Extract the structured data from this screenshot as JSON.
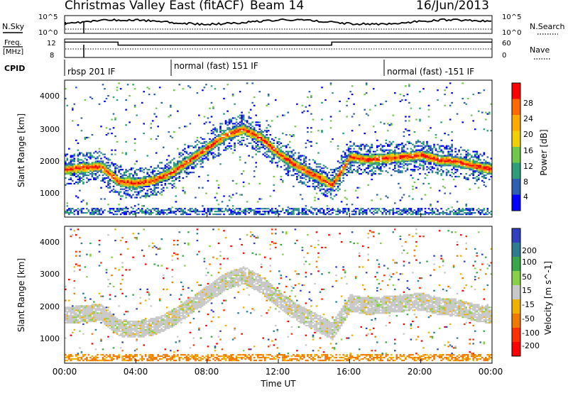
{
  "header": {
    "title": "Christmas Valley East (fitACF)",
    "beam": "Beam 14",
    "date": "16/Jun/2013"
  },
  "nsky": {
    "label": "N.Sky",
    "ticks": [
      "10^5",
      "10^0"
    ],
    "right_label": "N.Search",
    "right_ticks": [
      "10^5",
      "10^0"
    ]
  },
  "freq": {
    "label_line1": "Freq.",
    "label_line2": "[MHz]",
    "ticks": [
      "12",
      "8"
    ],
    "right_label": "Nave",
    "right_ticks": [
      "60",
      "0"
    ]
  },
  "cpid": {
    "label": "CPID",
    "segments": [
      {
        "label": "rbsp 201 IF",
        "start": 0
      },
      {
        "label": "normal (fast) 151 IF",
        "start": 6
      },
      {
        "label": "normal (fast) -151 IF",
        "start": 18
      }
    ]
  },
  "x_axis": {
    "label": "Time UT",
    "ticks": [
      "00:00",
      "04:00",
      "08:00",
      "12:00",
      "16:00",
      "20:00",
      "00:00"
    ]
  },
  "power_panel": {
    "ylabel": "Slant Range [km]",
    "yticks": [
      "4000",
      "3000",
      "2000",
      "1000"
    ],
    "cbar_label": "Power [dB]",
    "cbar_ticks": [
      "28",
      "24",
      "20",
      "16",
      "12",
      "8",
      "4"
    ],
    "cbar_colors": [
      "#ff0000",
      "#ff6a00",
      "#ffaa00",
      "#f0d000",
      "#6fc84a",
      "#2e9e7a",
      "#2e5fb0",
      "#0000ff"
    ]
  },
  "velocity_panel": {
    "ylabel": "Slant Range [km]",
    "yticks": [
      "4000",
      "3000",
      "2000",
      "1000"
    ],
    "cbar_label": "Velocity [m s^-1]",
    "cbar_ticks": [
      "200",
      "100",
      "50",
      "15",
      "-15",
      "-50",
      "-100",
      "-200"
    ],
    "cbar_colors": [
      "#3040c0",
      "#2e7a90",
      "#3aa64a",
      "#88d048",
      "#c8c8c8",
      "#f0b000",
      "#f07a00",
      "#ff3000",
      "#ff0000"
    ]
  },
  "chart_data": {
    "type": "heatmap",
    "x_range_hours": [
      0,
      24
    ],
    "y_range_km": [
      180,
      4600
    ],
    "frequency_mhz": [
      {
        "from": 0,
        "to": 3,
        "value": 12
      },
      {
        "from": 3,
        "to": 15,
        "value": 11
      },
      {
        "from": 15,
        "to": 24,
        "value": 12
      }
    ],
    "main_echo_band": {
      "time_hours": [
        0,
        1,
        2,
        3,
        4,
        5,
        6,
        7,
        8,
        9,
        10,
        11,
        12,
        13,
        14,
        15,
        16,
        17,
        18,
        19,
        20,
        21,
        22,
        23,
        24
      ],
      "range_km": [
        1700,
        1750,
        1800,
        1300,
        1250,
        1350,
        1600,
        2000,
        2400,
        2800,
        3000,
        2700,
        2200,
        1800,
        1500,
        1200,
        2100,
        2000,
        2050,
        2100,
        2150,
        2000,
        1950,
        1800,
        1700
      ]
    }
  }
}
